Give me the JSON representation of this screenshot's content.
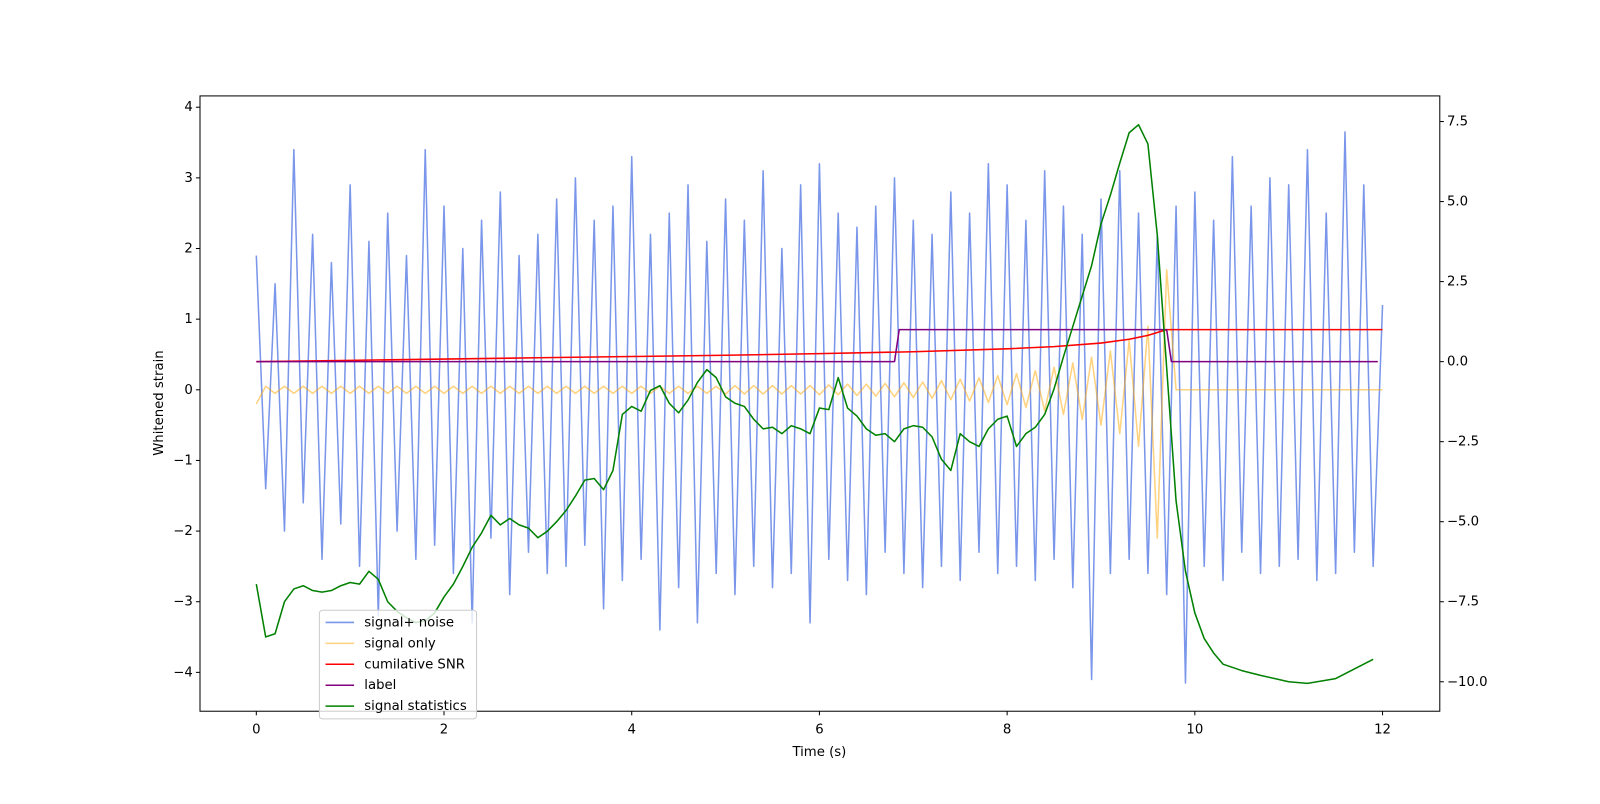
{
  "chart_data": {
    "type": "line",
    "xlabel": "Time (s)",
    "ylabel": "Whitened strain",
    "xlim": [
      -0.6,
      12.61
    ],
    "ylim": [
      -4.55,
      4.16
    ],
    "y2lim": [
      -10.92,
      8.3
    ],
    "xticks": [
      0,
      2,
      4,
      6,
      8,
      10,
      12
    ],
    "yticks": [
      {
        "value": -4,
        "label": "−4"
      },
      {
        "value": -3,
        "label": "−3"
      },
      {
        "value": -2,
        "label": "−2"
      },
      {
        "value": -1,
        "label": "−1"
      },
      0,
      1,
      2,
      3,
      4
    ],
    "y2ticks": [
      {
        "value": -10,
        "label": "−10.0"
      },
      {
        "value": -7.5,
        "label": "−7.5"
      },
      {
        "value": -5,
        "label": "−5.0"
      },
      {
        "value": -2.5,
        "label": "−2.5"
      },
      {
        "value": 0,
        "label": "0.0"
      },
      {
        "value": 2.5,
        "label": "2.5"
      },
      {
        "value": 5,
        "label": "5.0"
      },
      {
        "value": 7.5,
        "label": "7.5"
      }
    ],
    "legend": "lower left",
    "x": [
      0,
      0.1,
      0.2,
      0.3,
      0.4,
      0.5,
      0.6,
      0.7,
      0.8,
      0.9,
      1,
      1.1,
      1.2,
      1.3,
      1.4,
      1.5,
      1.6,
      1.7,
      1.8,
      1.9,
      2,
      2.1,
      2.2,
      2.3,
      2.4,
      2.5,
      2.6,
      2.7,
      2.8,
      2.9,
      3,
      3.1,
      3.2,
      3.3,
      3.4,
      3.5,
      3.6,
      3.7,
      3.8,
      3.9,
      4,
      4.1,
      4.2,
      4.3,
      4.4,
      4.5,
      4.6,
      4.7,
      4.8,
      4.9,
      5,
      5.1,
      5.2,
      5.3,
      5.4,
      5.5,
      5.6,
      5.7,
      5.8,
      5.9,
      6,
      6.1,
      6.2,
      6.3,
      6.4,
      6.5,
      6.6,
      6.7,
      6.8,
      6.9,
      7,
      7.1,
      7.2,
      7.3,
      7.4,
      7.5,
      7.6,
      7.7,
      7.8,
      7.9,
      8,
      8.1,
      8.2,
      8.3,
      8.4,
      8.5,
      8.6,
      8.7,
      8.8,
      8.9,
      9,
      9.1,
      9.2,
      9.3,
      9.4,
      9.5,
      9.6,
      9.7,
      9.8,
      9.9,
      10,
      10.1,
      10.2,
      10.3,
      10.4,
      10.5,
      10.6,
      10.7,
      10.8,
      10.9,
      11,
      11.1,
      11.2,
      11.3,
      11.4,
      11.5,
      11.6,
      11.7,
      11.8,
      11.9,
      12
    ],
    "series": [
      {
        "name": "signal+ noise",
        "color": "#4169e1",
        "alpha": 0.7,
        "values": [
          1.9,
          -1.4,
          1.5,
          -2.0,
          3.4,
          -1.6,
          2.2,
          -2.4,
          1.8,
          -1.9,
          2.9,
          -2.5,
          2.1,
          -3.2,
          2.5,
          -2.0,
          1.9,
          -2.4,
          3.4,
          -2.2,
          2.6,
          -2.6,
          2.0,
          -3.3,
          2.4,
          -2.1,
          2.8,
          -2.9,
          1.9,
          -2.3,
          2.2,
          -2.6,
          2.7,
          -2.5,
          3.0,
          -2.2,
          2.4,
          -3.1,
          2.6,
          -2.7,
          3.3,
          -2.4,
          2.2,
          -3.4,
          2.5,
          -2.8,
          2.9,
          -3.3,
          2.1,
          -2.6,
          2.7,
          -2.9,
          2.4,
          -2.5,
          3.1,
          -2.8,
          2.0,
          -2.6,
          2.9,
          -3.3,
          3.2,
          -2.4,
          2.5,
          -2.7,
          2.3,
          -2.9,
          2.6,
          -2.3,
          3.0,
          -2.6,
          2.4,
          -2.8,
          2.2,
          -2.5,
          2.8,
          -2.7,
          2.5,
          -2.3,
          3.2,
          -2.6,
          2.9,
          -2.5,
          2.4,
          -2.7,
          3.1,
          -2.4,
          2.6,
          -2.8,
          2.2,
          -4.1,
          2.7,
          -2.6,
          3.1,
          -2.4,
          2.5,
          -2.6,
          2.2,
          -2.9,
          2.6,
          -4.15,
          2.8,
          -2.5,
          2.4,
          -2.7,
          3.3,
          -2.3,
          2.6,
          -2.6,
          3.0,
          -2.5,
          2.9,
          -2.4,
          3.4,
          -2.7,
          2.5,
          -2.6,
          3.65,
          -2.3,
          2.9,
          -2.5,
          1.2
        ]
      },
      {
        "name": "signal only",
        "color": "#ffa500",
        "alpha": 0.5,
        "values": [
          -0.2,
          0.05,
          -0.05,
          0.05,
          -0.05,
          0.05,
          -0.05,
          0.05,
          -0.05,
          0.05,
          -0.05,
          0.05,
          -0.05,
          0.05,
          -0.05,
          0.05,
          -0.05,
          0.05,
          -0.05,
          0.05,
          -0.05,
          0.05,
          -0.05,
          0.05,
          -0.05,
          0.05,
          -0.05,
          0.05,
          -0.05,
          0.05,
          -0.05,
          0.05,
          -0.05,
          0.05,
          -0.05,
          0.05,
          -0.05,
          0.05,
          -0.05,
          0.05,
          -0.05,
          0.05,
          -0.05,
          0.05,
          -0.05,
          0.05,
          -0.05,
          0.05,
          -0.05,
          0.05,
          -0.06,
          0.06,
          -0.06,
          0.06,
          -0.06,
          0.06,
          -0.06,
          0.06,
          -0.06,
          0.06,
          -0.07,
          0.07,
          -0.07,
          0.08,
          -0.08,
          0.08,
          -0.09,
          0.09,
          -0.1,
          0.1,
          -0.11,
          0.11,
          -0.12,
          0.13,
          -0.14,
          0.15,
          -0.16,
          0.17,
          -0.18,
          0.2,
          -0.21,
          0.23,
          -0.25,
          0.27,
          -0.3,
          0.32,
          -0.35,
          0.38,
          -0.42,
          0.46,
          -0.5,
          0.55,
          -0.62,
          0.7,
          -0.8,
          0.9,
          -2.1,
          1.7,
          0,
          0,
          0,
          0,
          0,
          0,
          0,
          0,
          0,
          0,
          0,
          0,
          0,
          0,
          0,
          0,
          0,
          0,
          0,
          0,
          0,
          0,
          0
        ]
      },
      {
        "name": "cumilative SNR",
        "color": "#ff0000",
        "axis": "y2",
        "x": [
          0,
          1,
          2,
          3,
          4,
          5,
          6,
          7,
          8,
          8.5,
          9,
          9.3,
          9.5,
          9.7,
          12
        ],
        "values": [
          0,
          0.04,
          0.08,
          0.12,
          0.16,
          0.2,
          0.25,
          0.31,
          0.4,
          0.47,
          0.58,
          0.7,
          0.82,
          1.0,
          1.0
        ]
      },
      {
        "name": "label",
        "color": "#800080",
        "axis": "y2",
        "x": [
          0,
          6.8,
          6.85,
          9.7,
          9.75,
          11.95
        ],
        "values": [
          0,
          0,
          1,
          1,
          0,
          0
        ]
      },
      {
        "name": "signal statistics",
        "color": "#008000",
        "axis": "y2",
        "x": [
          0,
          0.1,
          0.2,
          0.3,
          0.4,
          0.5,
          0.6,
          0.7,
          0.8,
          0.9,
          1,
          1.1,
          1.2,
          1.3,
          1.4,
          1.5,
          1.6,
          1.7,
          1.8,
          1.9,
          2,
          2.1,
          2.2,
          2.3,
          2.4,
          2.5,
          2.6,
          2.7,
          2.8,
          2.9,
          3,
          3.1,
          3.2,
          3.3,
          3.4,
          3.5,
          3.6,
          3.7,
          3.8,
          3.9,
          4,
          4.1,
          4.2,
          4.3,
          4.4,
          4.5,
          4.6,
          4.7,
          4.8,
          4.9,
          5,
          5.1,
          5.2,
          5.3,
          5.4,
          5.5,
          5.6,
          5.7,
          5.8,
          5.9,
          6,
          6.1,
          6.2,
          6.3,
          6.4,
          6.5,
          6.6,
          6.7,
          6.8,
          6.9,
          7,
          7.1,
          7.2,
          7.3,
          7.4,
          7.5,
          7.6,
          7.7,
          7.8,
          7.9,
          8,
          8.1,
          8.2,
          8.3,
          8.4,
          8.5,
          8.6,
          8.7,
          8.8,
          8.9,
          9,
          9.1,
          9.2,
          9.3,
          9.4,
          9.5,
          9.6,
          9.7,
          9.8,
          9.9,
          10,
          10.1,
          10.2,
          10.3,
          10.5,
          10.7,
          11,
          11.2,
          11.5,
          11.7,
          11.9
        ],
        "values": [
          -6.95,
          -8.6,
          -8.5,
          -7.5,
          -7.1,
          -7.0,
          -7.15,
          -7.2,
          -7.15,
          -7.0,
          -6.9,
          -6.95,
          -6.55,
          -6.8,
          -7.5,
          -7.8,
          -8.0,
          -8.15,
          -8.1,
          -7.85,
          -7.35,
          -6.95,
          -6.4,
          -5.8,
          -5.35,
          -4.8,
          -5.1,
          -4.9,
          -5.1,
          -5.2,
          -5.5,
          -5.3,
          -5.0,
          -4.65,
          -4.2,
          -3.7,
          -3.65,
          -4.0,
          -3.4,
          -1.65,
          -1.4,
          -1.55,
          -0.9,
          -0.75,
          -1.3,
          -1.6,
          -1.2,
          -0.65,
          -0.25,
          -0.5,
          -1.1,
          -1.3,
          -1.4,
          -1.8,
          -2.1,
          -2.05,
          -2.25,
          -2.0,
          -2.1,
          -2.25,
          -1.45,
          -1.5,
          -0.5,
          -1.45,
          -1.7,
          -2.1,
          -2.3,
          -2.25,
          -2.5,
          -2.1,
          -2.0,
          -2.05,
          -2.35,
          -3.05,
          -3.4,
          -2.25,
          -2.5,
          -2.65,
          -2.1,
          -1.8,
          -1.7,
          -2.65,
          -2.25,
          -2.05,
          -1.65,
          -0.85,
          0.15,
          1.1,
          2.05,
          3.0,
          4.3,
          5.2,
          6.2,
          7.15,
          7.4,
          6.8,
          3.95,
          -0.2,
          -4.35,
          -6.55,
          -7.85,
          -8.65,
          -9.1,
          -9.45,
          -9.65,
          -9.8,
          -10.0,
          -10.05,
          -9.9,
          -9.6,
          -9.3
        ]
      }
    ]
  }
}
